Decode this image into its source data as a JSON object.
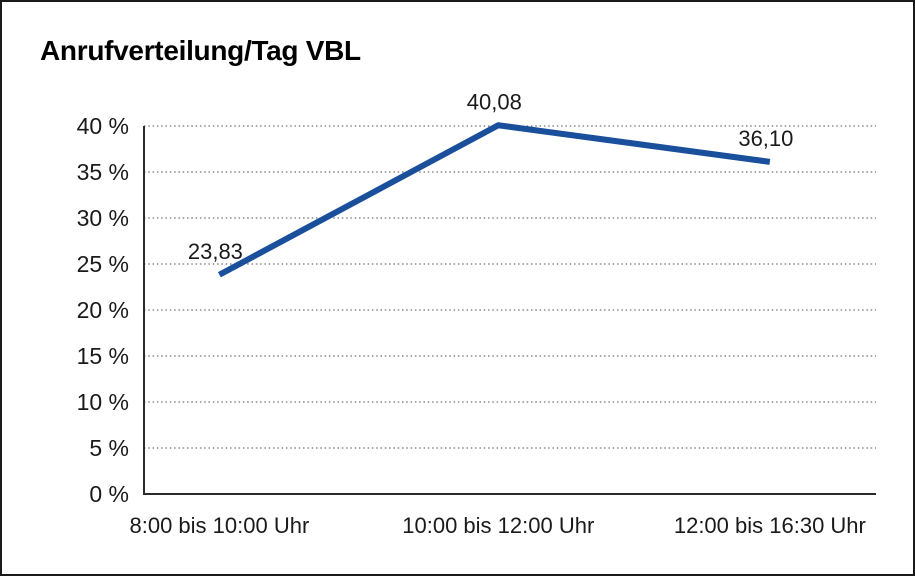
{
  "page": {
    "title": "Anrufverteilung/Tag VBL"
  },
  "chart_data": {
    "type": "line",
    "title": "Anrufverteilung/Tag VBL",
    "categories": [
      "8:00 bis 10:00 Uhr",
      "10:00 bis 12:00 Uhr",
      "12:00 bis 16:30 Uhr"
    ],
    "values": [
      23.83,
      40.08,
      36.1
    ],
    "value_labels": [
      "23,83",
      "40,08",
      "36,10"
    ],
    "xlabel": "",
    "ylabel": "",
    "ylim": [
      0,
      40
    ],
    "ytick_values": [
      0,
      5,
      10,
      15,
      20,
      25,
      30,
      35,
      40
    ],
    "ytick_labels": [
      "0 %",
      "5 %",
      "10 %",
      "15 %",
      "20 %",
      "25 %",
      "30 %",
      "35 %",
      "40 %"
    ],
    "grid": "horizontal-dotted",
    "legend": "none",
    "colors": {
      "line": "#1A4F9C",
      "axis": "#2b2b2b",
      "gridline": "#4d4d4d",
      "text": "#1a1a1a"
    }
  }
}
